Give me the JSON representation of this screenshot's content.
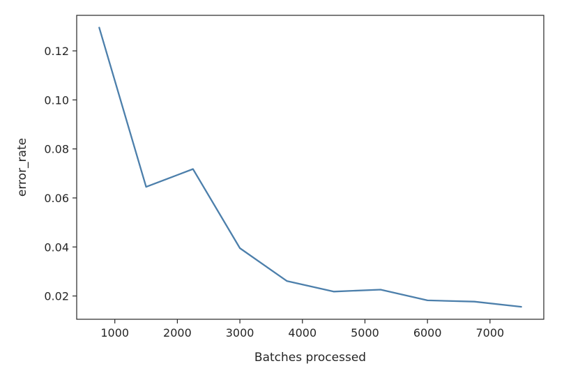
{
  "chart_data": {
    "type": "line",
    "title": "",
    "xlabel": "Batches processed",
    "ylabel": "error_rate",
    "xlim": [
      390,
      7860
    ],
    "ylim": [
      0.0105,
      0.1345
    ],
    "xticks": [
      1000,
      2000,
      3000,
      4000,
      5000,
      6000,
      7000
    ],
    "xtick_labels": [
      "1000",
      "2000",
      "3000",
      "4000",
      "5000",
      "6000",
      "7000"
    ],
    "yticks": [
      0.02,
      0.04,
      0.06,
      0.08,
      0.1,
      0.12
    ],
    "ytick_labels": [
      "0.02",
      "0.04",
      "0.06",
      "0.08",
      "0.10",
      "0.12"
    ],
    "grid": false,
    "series": [
      {
        "color": "#4c7fab",
        "x": [
          750,
          1500,
          2250,
          3000,
          3750,
          4500,
          5250,
          6000,
          6750,
          7500
        ],
        "y": [
          0.1295,
          0.0645,
          0.0718,
          0.0395,
          0.0261,
          0.0218,
          0.0226,
          0.0182,
          0.0177,
          0.0156
        ]
      }
    ]
  }
}
